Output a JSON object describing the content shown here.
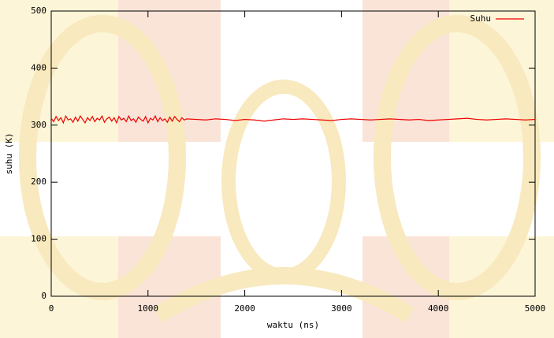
{
  "chart_data": {
    "type": "line",
    "xlabel": "waktu (ns)",
    "ylabel": "suhu (K)",
    "x": [
      0,
      25,
      50,
      75,
      100,
      125,
      150,
      175,
      200,
      225,
      250,
      275,
      300,
      325,
      350,
      375,
      400,
      425,
      450,
      475,
      500,
      525,
      550,
      575,
      600,
      625,
      650,
      675,
      700,
      725,
      750,
      775,
      800,
      825,
      850,
      875,
      900,
      925,
      950,
      975,
      1000,
      1025,
      1050,
      1075,
      1100,
      1125,
      1150,
      1175,
      1200,
      1225,
      1250,
      1275,
      1300,
      1325,
      1350,
      1375,
      1400,
      1500,
      1600,
      1700,
      1800,
      1900,
      2000,
      2100,
      2200,
      2300,
      2400,
      2500,
      2600,
      2700,
      2800,
      2900,
      3000,
      3100,
      3200,
      3300,
      3400,
      3500,
      3600,
      3700,
      3800,
      3900,
      4000,
      4100,
      4200,
      4300,
      4400,
      4500,
      4600,
      4700,
      4800,
      4900,
      5000
    ],
    "series": [
      {
        "name": "Suhu",
        "color": "#ee0000",
        "values": [
          312,
          306,
          315,
          308,
          313,
          304,
          316,
          309,
          311,
          305,
          314,
          307,
          316,
          310,
          304,
          313,
          308,
          315,
          306,
          312,
          309,
          316,
          305,
          311,
          314,
          307,
          313,
          304,
          315,
          309,
          312,
          306,
          316,
          308,
          311,
          305,
          314,
          310,
          307,
          315,
          304,
          312,
          309,
          316,
          306,
          313,
          308,
          311,
          305,
          314,
          307,
          315,
          310,
          306,
          313,
          309,
          311,
          310,
          309,
          311,
          310,
          308,
          310,
          309,
          307,
          309,
          311,
          310,
          311,
          310,
          309,
          308,
          310,
          311,
          310,
          309,
          310,
          311,
          310,
          309,
          310,
          308,
          309,
          310,
          311,
          312,
          310,
          309,
          310,
          311,
          310,
          309,
          310
        ]
      }
    ],
    "xlim": [
      0,
      5000
    ],
    "xticks": [
      0,
      1000,
      2000,
      3000,
      4000,
      5000
    ],
    "ylim": [
      0,
      500
    ],
    "yticks": [
      0,
      100,
      200,
      300,
      400,
      500
    ],
    "legend": "top-right"
  }
}
